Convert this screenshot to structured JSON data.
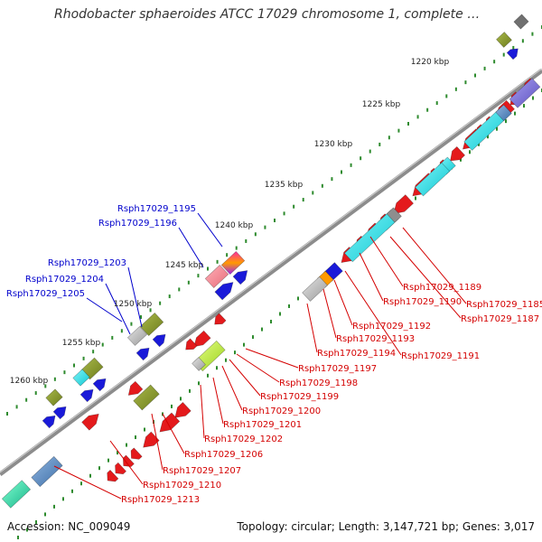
{
  "title": "Rhodobacter sphaeroides ATCC 17029 chromosome 1, complete ge...",
  "footer": {
    "accession": "Accession: NC_009049",
    "summary": "Topology: circular; Length: 3,147,721 bp; Genes: 3,017"
  },
  "ticks": [
    {
      "label": "1220 kbp"
    },
    {
      "label": "1225 kbp"
    },
    {
      "label": "1230 kbp"
    },
    {
      "label": "1235 kbp"
    },
    {
      "label": "1240 kbp"
    },
    {
      "label": "1245 kbp"
    },
    {
      "label": "1250 kbp"
    },
    {
      "label": "1255 kbp"
    },
    {
      "label": "1260 kbp"
    }
  ],
  "blue_labels": [
    "Rsph17029_1195",
    "Rsph17029_1196",
    "Rsph17029_1203",
    "Rsph17029_1204",
    "Rsph17029_1205"
  ],
  "red_labels": [
    "Rsph17029_1189",
    "Rsph17029_1190",
    "Rsph17029_1185",
    "Rsph17029_1187",
    "Rsph17029_1192",
    "Rsph17029_1193",
    "Rsph17029_1194",
    "Rsph17029_1191",
    "Rsph17029_1197",
    "Rsph17029_1198",
    "Rsph17029_1199",
    "Rsph17029_1200",
    "Rsph17029_1201",
    "Rsph17029_1202",
    "Rsph17029_1206",
    "Rsph17029_1207",
    "Rsph17029_1210",
    "Rsph17029_1213"
  ],
  "colors": {
    "backbone": "#8c8c8c",
    "dots": "#2e8b2e",
    "forward_gene": "#e41a1c",
    "reverse_gene": "#1a1ad9",
    "olive_feature": "#8a9a2a",
    "cyan_feature": "#19e0e8",
    "label_red": "#d40000",
    "label_blue": "#0000cc"
  }
}
